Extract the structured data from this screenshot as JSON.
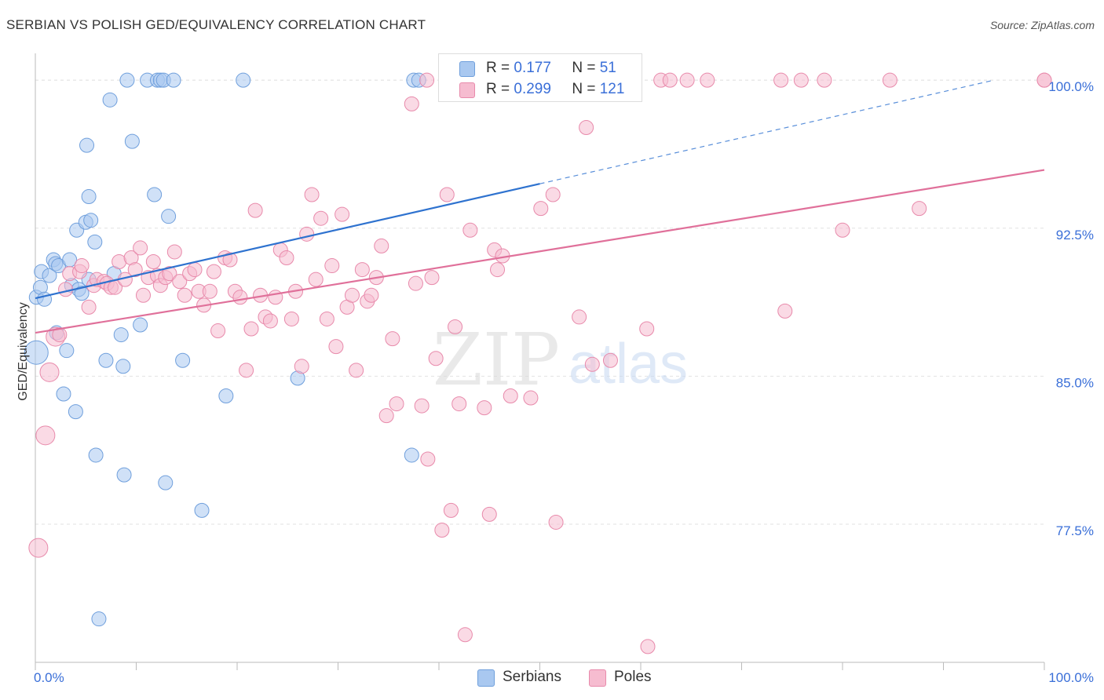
{
  "header": {
    "title": "SERBIAN VS POLISH GED/EQUIVALENCY CORRELATION CHART",
    "source": "Source: ZipAtlas.com"
  },
  "legend_top": {
    "serbians": {
      "r_label": "R =",
      "r_value": "0.177",
      "n_label": "N =",
      "n_value": "51"
    },
    "poles": {
      "r_label": "R =",
      "r_value": "0.299",
      "n_label": "N =",
      "n_value": "121"
    }
  },
  "legend_bottom": {
    "serbians": "Serbians",
    "poles": "Poles"
  },
  "colors": {
    "serbian_fill": "#a9c8f0",
    "serbian_stroke": "#6f9fdc",
    "serbian_line": "#2e72cf",
    "pole_fill": "#f6bcd0",
    "pole_stroke": "#e88aab",
    "pole_line": "#e0709a",
    "tick_text": "#3a6fd8",
    "grid": "#e2e2e2"
  },
  "watermark": {
    "zip": "ZIP",
    "atlas": "atlas"
  },
  "chart_data": {
    "type": "scatter",
    "title": "SERBIAN VS POLISH GED/EQUIVALENCY CORRELATION CHART",
    "xlabel": "",
    "ylabel": "GED/Equivalency",
    "xlim": [
      0,
      100
    ],
    "ylim": [
      70.5,
      101.2
    ],
    "x_tick_labels": [
      {
        "value": 0,
        "label": "0.0%"
      },
      {
        "value": 100,
        "label": "100.0%"
      }
    ],
    "x_minor_ticks": [
      0,
      10,
      20,
      30,
      40,
      50,
      60,
      70,
      80,
      90,
      100
    ],
    "y_ticks": [
      {
        "value": 100.0,
        "label": "100.0%"
      },
      {
        "value": 92.5,
        "label": "92.5%"
      },
      {
        "value": 85.0,
        "label": "85.0%"
      },
      {
        "value": 77.5,
        "label": "77.5%"
      }
    ],
    "grid": true,
    "legend_placement": "top-center",
    "series": [
      {
        "name": "Serbians",
        "trend": {
          "x0": 0,
          "y0": 88.95,
          "x1": 50,
          "y1": 94.75,
          "dashed_to_x": 95,
          "dashed_to_y": 100.0
        },
        "points": [
          [
            0.1,
            86.2,
            15
          ],
          [
            0.1,
            89.0,
            9
          ],
          [
            0.5,
            89.5,
            9
          ],
          [
            0.6,
            90.3,
            9
          ],
          [
            0.9,
            88.9,
            9
          ],
          [
            1.4,
            90.1,
            9
          ],
          [
            1.8,
            90.9,
            9
          ],
          [
            2.0,
            90.7,
            9
          ],
          [
            2.3,
            90.6,
            9
          ],
          [
            2.1,
            87.2,
            9
          ],
          [
            3.4,
            90.9,
            9
          ],
          [
            2.8,
            84.1,
            9
          ],
          [
            3.1,
            86.3,
            9
          ],
          [
            3.6,
            89.6,
            9
          ],
          [
            4.0,
            83.2,
            9
          ],
          [
            4.1,
            92.4,
            9
          ],
          [
            4.3,
            89.4,
            9
          ],
          [
            4.6,
            89.2,
            9
          ],
          [
            5.0,
            92.8,
            9
          ],
          [
            5.1,
            96.7,
            9
          ],
          [
            5.3,
            89.9,
            9
          ],
          [
            5.3,
            94.1,
            9
          ],
          [
            5.5,
            92.9,
            9
          ],
          [
            5.9,
            91.8,
            9
          ],
          [
            6.0,
            81.0,
            9
          ],
          [
            6.3,
            72.7,
            9
          ],
          [
            7.0,
            85.8,
            9
          ],
          [
            7.4,
            99.0,
            9
          ],
          [
            7.8,
            90.2,
            9
          ],
          [
            8.5,
            87.1,
            9
          ],
          [
            8.7,
            85.5,
            9
          ],
          [
            8.8,
            80.0,
            9
          ],
          [
            9.1,
            100.0,
            9
          ],
          [
            9.6,
            96.9,
            9
          ],
          [
            10.4,
            87.6,
            9
          ],
          [
            11.1,
            100.0,
            9
          ],
          [
            11.8,
            94.2,
            9
          ],
          [
            12.1,
            100.0,
            9
          ],
          [
            12.4,
            100.0,
            9
          ],
          [
            12.7,
            100.0,
            9
          ],
          [
            12.9,
            79.6,
            9
          ],
          [
            13.2,
            93.1,
            9
          ],
          [
            13.7,
            100.0,
            9
          ],
          [
            14.6,
            85.8,
            9
          ],
          [
            16.5,
            78.2,
            9
          ],
          [
            18.9,
            84.0,
            9
          ],
          [
            20.6,
            100.0,
            9
          ],
          [
            26.0,
            84.9,
            9
          ],
          [
            37.3,
            81.0,
            9
          ],
          [
            37.5,
            100.0,
            9
          ],
          [
            38.0,
            100.0,
            9
          ]
        ]
      },
      {
        "name": "Poles",
        "trend": {
          "x0": 0,
          "y0": 87.2,
          "x1": 100,
          "y1": 95.45
        },
        "points": [
          [
            0.3,
            76.3,
            12
          ],
          [
            1.0,
            82.0,
            12
          ],
          [
            1.4,
            85.2,
            12
          ],
          [
            2.0,
            87.0,
            12
          ],
          [
            2.4,
            87.1,
            9
          ],
          [
            3.0,
            89.4,
            9
          ],
          [
            3.4,
            90.2,
            9
          ],
          [
            4.4,
            90.3,
            9
          ],
          [
            4.6,
            90.6,
            9
          ],
          [
            5.3,
            88.5,
            9
          ],
          [
            5.8,
            89.6,
            9
          ],
          [
            6.1,
            89.9,
            9
          ],
          [
            6.8,
            89.8,
            9
          ],
          [
            7.1,
            89.7,
            9
          ],
          [
            7.5,
            89.5,
            9
          ],
          [
            7.9,
            89.5,
            9
          ],
          [
            8.3,
            90.8,
            9
          ],
          [
            8.9,
            89.9,
            9
          ],
          [
            9.5,
            91.0,
            9
          ],
          [
            9.9,
            90.4,
            9
          ],
          [
            10.4,
            91.5,
            9
          ],
          [
            10.7,
            89.1,
            9
          ],
          [
            11.2,
            90.0,
            9
          ],
          [
            11.7,
            90.8,
            9
          ],
          [
            12.1,
            90.1,
            9
          ],
          [
            12.4,
            89.6,
            9
          ],
          [
            12.9,
            90.0,
            9
          ],
          [
            13.3,
            90.2,
            9
          ],
          [
            13.8,
            91.3,
            9
          ],
          [
            14.3,
            89.8,
            9
          ],
          [
            14.8,
            89.1,
            9
          ],
          [
            15.3,
            90.2,
            9
          ],
          [
            15.8,
            90.4,
            9
          ],
          [
            16.2,
            89.3,
            9
          ],
          [
            16.7,
            88.6,
            9
          ],
          [
            17.3,
            89.3,
            9
          ],
          [
            17.7,
            90.3,
            9
          ],
          [
            18.1,
            87.3,
            9
          ],
          [
            18.8,
            91.0,
            9
          ],
          [
            19.3,
            90.9,
            9
          ],
          [
            19.8,
            89.3,
            9
          ],
          [
            20.3,
            89.0,
            9
          ],
          [
            20.9,
            85.3,
            9
          ],
          [
            21.4,
            87.4,
            9
          ],
          [
            21.8,
            93.4,
            9
          ],
          [
            22.3,
            89.1,
            9
          ],
          [
            22.8,
            88.0,
            9
          ],
          [
            23.3,
            87.8,
            9
          ],
          [
            23.8,
            89.0,
            9
          ],
          [
            24.3,
            91.4,
            9
          ],
          [
            24.9,
            91.0,
            9
          ],
          [
            25.4,
            87.9,
            9
          ],
          [
            25.8,
            89.3,
            9
          ],
          [
            26.4,
            85.5,
            9
          ],
          [
            26.9,
            92.2,
            9
          ],
          [
            27.4,
            94.2,
            9
          ],
          [
            27.8,
            89.9,
            9
          ],
          [
            28.3,
            93.0,
            9
          ],
          [
            28.9,
            87.9,
            9
          ],
          [
            29.4,
            90.6,
            9
          ],
          [
            29.8,
            86.5,
            9
          ],
          [
            30.4,
            93.2,
            9
          ],
          [
            30.9,
            88.5,
            9
          ],
          [
            31.4,
            89.1,
            9
          ],
          [
            31.8,
            85.3,
            9
          ],
          [
            32.4,
            90.4,
            9
          ],
          [
            32.9,
            88.8,
            9
          ],
          [
            33.3,
            89.1,
            9
          ],
          [
            33.8,
            90.0,
            9
          ],
          [
            34.3,
            91.6,
            9
          ],
          [
            34.8,
            83.0,
            9
          ],
          [
            35.4,
            86.9,
            9
          ],
          [
            35.8,
            83.6,
            9
          ],
          [
            37.3,
            98.8,
            9
          ],
          [
            37.7,
            89.7,
            9
          ],
          [
            38.3,
            83.5,
            9
          ],
          [
            38.8,
            100.0,
            9
          ],
          [
            38.9,
            80.8,
            9
          ],
          [
            39.3,
            90.0,
            9
          ],
          [
            39.7,
            85.9,
            9
          ],
          [
            40.3,
            77.2,
            9
          ],
          [
            40.8,
            94.2,
            9
          ],
          [
            41.2,
            78.2,
            9
          ],
          [
            41.6,
            87.5,
            9
          ],
          [
            42.0,
            83.6,
            9
          ],
          [
            42.6,
            71.9,
            9
          ],
          [
            43.1,
            92.4,
            9
          ],
          [
            44.5,
            83.4,
            9
          ],
          [
            45.0,
            78.0,
            9
          ],
          [
            45.5,
            91.4,
            9
          ],
          [
            45.8,
            90.4,
            9
          ],
          [
            46.3,
            91.1,
            9
          ],
          [
            47.1,
            84.0,
            9
          ],
          [
            48.1,
            100.0,
            9
          ],
          [
            48.6,
            100.0,
            9
          ],
          [
            49.1,
            83.9,
            9
          ],
          [
            50.1,
            93.5,
            9
          ],
          [
            51.1,
            100.0,
            9
          ],
          [
            51.3,
            94.2,
            9
          ],
          [
            51.6,
            77.6,
            9
          ],
          [
            53.2,
            100.0,
            9
          ],
          [
            53.9,
            88.0,
            9
          ],
          [
            54.6,
            97.6,
            9
          ],
          [
            55.2,
            85.6,
            9
          ],
          [
            56.8,
            100.0,
            9
          ],
          [
            57.0,
            85.8,
            9
          ],
          [
            60.6,
            87.4,
            9
          ],
          [
            60.7,
            71.3,
            9
          ],
          [
            62.0,
            100.0,
            9
          ],
          [
            62.9,
            100.0,
            9
          ],
          [
            64.6,
            100.0,
            9
          ],
          [
            66.6,
            100.0,
            9
          ],
          [
            73.9,
            100.0,
            9
          ],
          [
            74.3,
            88.3,
            9
          ],
          [
            75.9,
            100.0,
            9
          ],
          [
            78.2,
            100.0,
            9
          ],
          [
            80.0,
            92.4,
            9
          ],
          [
            84.7,
            100.0,
            9
          ],
          [
            87.6,
            93.5,
            9
          ],
          [
            100.0,
            100.0,
            9
          ],
          [
            100.0,
            100.0,
            9
          ]
        ]
      }
    ]
  }
}
